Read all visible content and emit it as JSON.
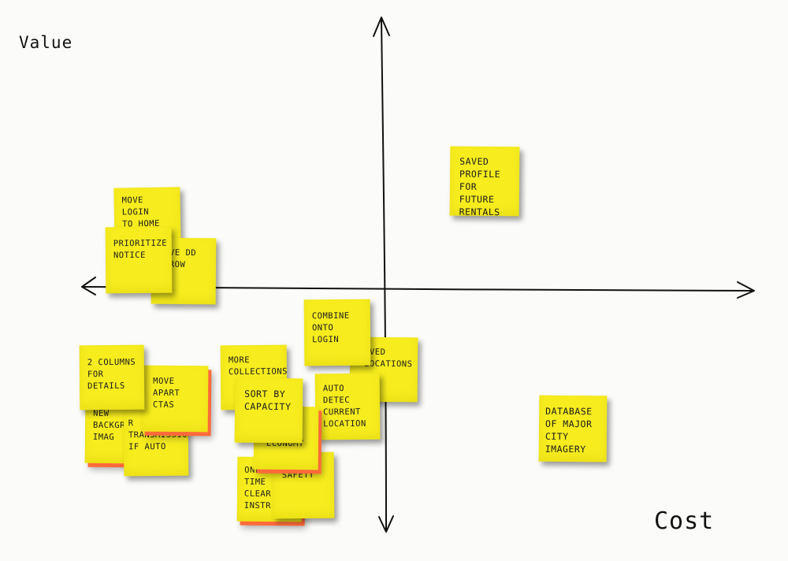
{
  "axes": {
    "y_label": "Value",
    "x_label": "Cost"
  },
  "notes": {
    "move_login": "Move login\nto home\nscreen",
    "move_dd_arrow": "ove DD\nrrow",
    "prioritize_notice": "Prioritize\nnotice",
    "saved_profile": "Saved\nprofile\nfor future\nrentals",
    "combine_onto_login": "Combine\nonto login",
    "saved_locations": "aved\nlocations",
    "more_collections": "More\ncollections",
    "auto_detect": "Auto\ndetec\ncurrent\nlocation",
    "database_city": "Database\nof major\ncity\nimagery",
    "two_columns": "2 columns\nfor details",
    "move_apart_ctas": "move\napart\nCTAs",
    "new_background": "New\nbackgr\nimag",
    "transmission": "R\ntransmission\nif auto",
    "sort_by_capacity": "Sort by\ncapacity",
    "economy": "economy",
    "safety": "safety",
    "one_time": "One\ntime\nclear\ninstr"
  },
  "colors": {
    "note": "#f6ec1e",
    "note_under": "#ff6a3a",
    "ink": "#111111",
    "board": "#fbfbf9"
  }
}
